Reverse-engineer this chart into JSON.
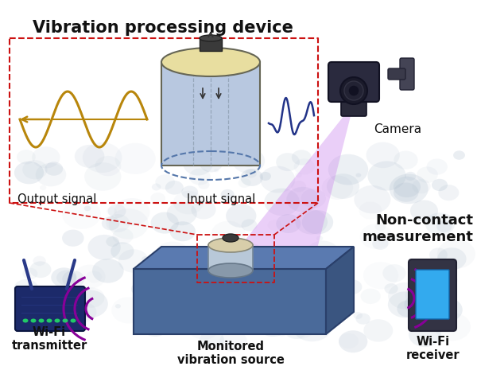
{
  "title": "Vibration processing device",
  "bg_color": "#ffffff",
  "figsize": [
    6.0,
    4.65
  ],
  "dpi": 100,
  "labels": {
    "output_signal": "Output signal",
    "input_signal": "Input signal",
    "camera": "Camera",
    "non_contact": "Non-contact\nmeasurement",
    "wifi_tx": "Wi-Fi\ntransmitter",
    "vibration_source": "Monitored\nvibration source",
    "wifi_rx": "Wi-Fi\nreceiver"
  },
  "colors": {
    "red_dashed": "#cc1111",
    "gold_wave": "#b8860b",
    "blue_wave": "#223388",
    "cylinder_body": "#b8c8e0",
    "cylinder_top": "#e8dea0",
    "cylinder_outline": "#666655",
    "box_front": "#4a6a9a",
    "box_top": "#5a7ab0",
    "box_right": "#3a5580",
    "box_outline": "#2a3f6a",
    "purple_wifi": "#880099",
    "camera_dark": "#1a1a2e",
    "camera_body": "#2a2a3e",
    "light_cone": "#cc99dd",
    "bg_dots": "#99aabb",
    "text_dark": "#111111",
    "router_body": "#1a2a66",
    "router_led": "#22cc66",
    "phone_body": "#333344",
    "phone_screen": "#33aaee",
    "sensor_top": "#d8ceaa",
    "sensor_body": "#b8c8d8"
  }
}
